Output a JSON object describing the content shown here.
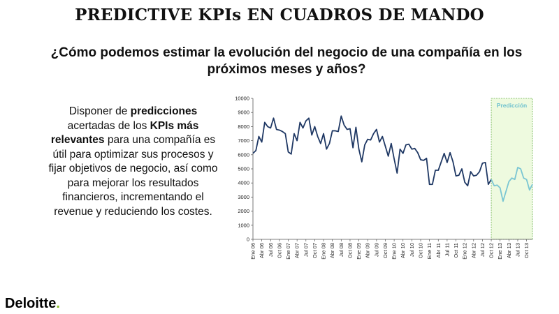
{
  "title": "PREDICTIVE KPIs EN CUADROS DE MANDO",
  "subtitle": "¿Cómo podemos estimar la evolución del negocio de una compañía en los próximos meses y años?",
  "body": {
    "part1": "Disponer de ",
    "bold1": "predicciones",
    "part2": " acertadas de los ",
    "bold2": "KPIs más relevantes",
    "part3": " para una compañía es útil para optimizar sus procesos y fijar objetivos de negocio, así como para mejorar los resultados financieros, incrementando el revenue y reduciendo los costes."
  },
  "logo": {
    "text": "Deloitte",
    "dot": "."
  },
  "chart_data": {
    "type": "line",
    "ylim": [
      0,
      10000
    ],
    "yticks": [
      0,
      1000,
      2000,
      3000,
      4000,
      5000,
      6000,
      7000,
      8000,
      9000,
      10000
    ],
    "x_tick_labels": [
      "Ene 06",
      "Abr 06",
      "Jul 06",
      "Oct 06",
      "Ene 07",
      "Abr 07",
      "Jul 07",
      "Oct 07",
      "Ene 08",
      "Abr 08",
      "Jul 08",
      "Oct 08",
      "Ene 09",
      "Abr 09",
      "Jul 09",
      "Oct 09",
      "Ene 10",
      "Abr 10",
      "Jul 10",
      "Oct 10",
      "Ene 11",
      "Abr 11",
      "Jul 11",
      "Oct 11",
      "Ene 12",
      "Abr 12",
      "Jul 12",
      "Oct 12",
      "Ene 13",
      "Abr 13",
      "Jul 13",
      "Oct 13"
    ],
    "prediction_label": "Predicción",
    "prediction_start_index": 81,
    "colors": {
      "historical": "#1f3864",
      "prediction": "#7ac6d3",
      "prediction_bg": "#eefadf",
      "prediction_border": "#6ab04c"
    },
    "series": [
      {
        "segment": "historical",
        "x_start": "Ene 06",
        "values": [
          6100,
          6300,
          7300,
          6900,
          8300,
          8000,
          7900,
          8600,
          7800,
          7750,
          7650,
          7500,
          6200,
          6050,
          7500,
          7000,
          8300,
          7900,
          8400,
          8600,
          7400,
          8000,
          7300,
          6800,
          7500,
          6400,
          6800,
          7700,
          7700,
          7650,
          8750,
          8100,
          7800,
          7850,
          6500,
          7950,
          6400,
          5500,
          6700,
          7100,
          7050,
          7500,
          7800,
          6900,
          7300,
          6600,
          5900,
          6800,
          5700,
          4700,
          6400,
          6100,
          6700,
          6750,
          6400,
          6450,
          6150,
          5650,
          5600,
          5750,
          3900,
          3900,
          4900,
          4900,
          5500,
          6100,
          5450,
          6150,
          5500,
          4500,
          4550,
          5000,
          4050,
          3800,
          4800,
          4500,
          4550,
          4800,
          5400,
          5450,
          3900,
          4250
        ]
      },
      {
        "segment": "prediction",
        "x_start": "Sep 12",
        "values": [
          4250,
          3800,
          3850,
          3650,
          2700,
          3400,
          4100,
          4350,
          4250,
          5100,
          5000,
          4350,
          4250,
          3500,
          3900
        ]
      }
    ]
  }
}
